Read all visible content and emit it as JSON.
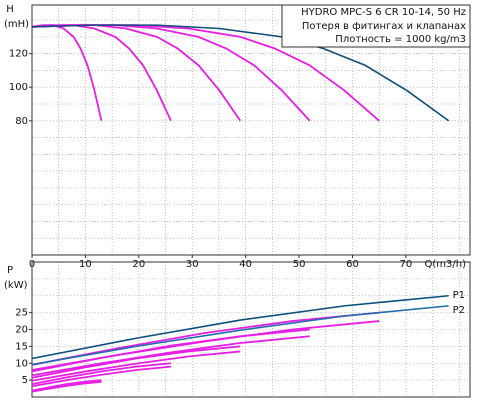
{
  "chart_data": [
    {
      "type": "line",
      "title": "HYDRO MPC-S 6 CR 10-14, 50 Hz",
      "annotations": [
        "Потеря в фитингах и клапанах",
        "Плотность = 1000 kg/m3"
      ],
      "ylabel": [
        "H",
        "(mH)"
      ],
      "xlabel": "Q(m3/h)",
      "xlim": [
        0,
        82
      ],
      "ylim": [
        0,
        149
      ],
      "xticks": [
        0,
        10,
        20,
        30,
        40,
        50,
        60,
        70
      ],
      "yticks": [
        80,
        100,
        120
      ],
      "xgrid": [
        0,
        5,
        10,
        15,
        20,
        25,
        30,
        35,
        40,
        45,
        50,
        55,
        60,
        65,
        70,
        75,
        80
      ],
      "ygrid": [
        10,
        20,
        30,
        40,
        50,
        60,
        70,
        80,
        90,
        100,
        110,
        120,
        130,
        140
      ],
      "series": [
        {
          "color": "#e61ee6",
          "x": [
            0,
            2,
            3.9,
            5.9,
            7.8,
            9.1,
            10.4,
            11.7,
            13
          ],
          "values": [
            136,
            137,
            137,
            135,
            130,
            123,
            113,
            98,
            80
          ]
        },
        {
          "color": "#e61ee6",
          "x": [
            0,
            3.9,
            7.8,
            11.7,
            15.6,
            18.2,
            20.8,
            23.4,
            26
          ],
          "values": [
            136,
            137,
            137,
            135,
            130,
            123,
            113,
            98,
            80
          ]
        },
        {
          "color": "#e61ee6",
          "x": [
            0,
            5.9,
            11.7,
            17.6,
            23.4,
            27.3,
            31.2,
            35.1,
            39
          ],
          "values": [
            136,
            137,
            137,
            135,
            130,
            123,
            113,
            98,
            80
          ]
        },
        {
          "color": "#e61ee6",
          "x": [
            0,
            7.8,
            15.6,
            23.4,
            31.2,
            36.4,
            41.6,
            46.8,
            52
          ],
          "values": [
            136,
            137,
            137,
            135,
            130,
            123,
            113,
            98,
            80
          ]
        },
        {
          "color": "#e61ee6",
          "x": [
            0,
            9.8,
            19.5,
            29.3,
            39,
            45.5,
            52,
            58.5,
            65
          ],
          "values": [
            136,
            137,
            137,
            135,
            130,
            123,
            113,
            98,
            80
          ]
        },
        {
          "color": "#0b4f7c",
          "x": [
            0,
            11.7,
            23.4,
            35.1,
            46.8,
            54.6,
            62.4,
            70.2,
            78
          ],
          "values": [
            136,
            137,
            137,
            135,
            130,
            123,
            113,
            98,
            80
          ]
        }
      ]
    },
    {
      "type": "line",
      "ylabel": [
        "P",
        "(kW)"
      ],
      "xlim": [
        0,
        82
      ],
      "ylim": [
        0,
        40
      ],
      "yticks": [
        5,
        10,
        15,
        20,
        25
      ],
      "xgrid": [
        0,
        5,
        10,
        15,
        20,
        25,
        30,
        35,
        40,
        45,
        50,
        55,
        60,
        65,
        70,
        75,
        80
      ],
      "ygrid": [
        5,
        10,
        15,
        20,
        25,
        30,
        35
      ],
      "series": [
        {
          "color": "#e61ee6",
          "x": [
            0,
            3.25,
            6.5,
            9.75,
            13
          ],
          "values": [
            1.9,
            2.9,
            3.8,
            4.5,
            5.0
          ]
        },
        {
          "color": "#e61ee6",
          "x": [
            0,
            3.25,
            6.5,
            9.75,
            13
          ],
          "values": [
            1.6,
            2.5,
            3.3,
            4.0,
            4.5
          ]
        },
        {
          "color": "#e61ee6",
          "x": [
            0,
            6.5,
            13,
            19.5,
            26
          ],
          "values": [
            3.8,
            5.8,
            7.6,
            9,
            10
          ]
        },
        {
          "color": "#e61ee6",
          "x": [
            0,
            6.5,
            13,
            19.5,
            26
          ],
          "values": [
            3.2,
            5,
            6.6,
            8,
            9
          ]
        },
        {
          "color": "#e61ee6",
          "x": [
            0,
            9.75,
            19.5,
            29.25,
            39
          ],
          "values": [
            5.7,
            8.7,
            11.4,
            13.5,
            15
          ]
        },
        {
          "color": "#e61ee6",
          "x": [
            0,
            9.75,
            19.5,
            29.25,
            39
          ],
          "values": [
            4.8,
            7.5,
            9.9,
            12,
            13.5
          ]
        },
        {
          "color": "#e61ee6",
          "x": [
            0,
            13,
            26,
            39,
            52
          ],
          "values": [
            7.6,
            11.6,
            15.2,
            18,
            20
          ]
        },
        {
          "color": "#e61ee6",
          "x": [
            0,
            13,
            26,
            39,
            52
          ],
          "values": [
            6.4,
            10,
            13.2,
            16,
            18
          ]
        },
        {
          "color": "#e61ee6",
          "x": [
            0,
            16.25,
            32.5,
            48.75,
            65
          ],
          "values": [
            9.5,
            14.5,
            19,
            22.5,
            25
          ]
        },
        {
          "color": "#e61ee6",
          "x": [
            0,
            16.25,
            32.5,
            48.75,
            65
          ],
          "values": [
            8,
            12.5,
            16.5,
            20,
            22.5
          ]
        },
        {
          "name": "P1",
          "color": "#0b4f7c",
          "x": [
            0,
            19.5,
            39,
            58.5,
            78
          ],
          "values": [
            11.4,
            17.4,
            22.8,
            27,
            30
          ]
        },
        {
          "name": "P2",
          "color": "#1f6fa8",
          "x": [
            0,
            19.5,
            39,
            58.5,
            78
          ],
          "values": [
            9.6,
            15,
            19.8,
            24,
            27
          ]
        }
      ]
    }
  ]
}
